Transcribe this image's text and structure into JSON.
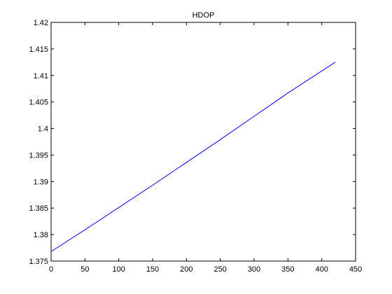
{
  "chart_data": {
    "type": "line",
    "title": "HDOP",
    "xlabel": "",
    "ylabel": "",
    "xlim": [
      0,
      450
    ],
    "ylim": [
      1.375,
      1.42
    ],
    "xticks": [
      0,
      50,
      100,
      150,
      200,
      250,
      300,
      350,
      400,
      450
    ],
    "xtick_labels": [
      "0",
      "50",
      "100",
      "150",
      "200",
      "250",
      "300",
      "350",
      "400",
      "450"
    ],
    "yticks": [
      1.375,
      1.38,
      1.385,
      1.39,
      1.395,
      1.4,
      1.405,
      1.41,
      1.415,
      1.42
    ],
    "ytick_labels": [
      "1.375",
      "1.38",
      "1.385",
      "1.39",
      "1.395",
      "1.4",
      "1.405",
      "1.41",
      "1.415",
      "1.42"
    ],
    "grid": false,
    "series": [
      {
        "color": "#0000ff",
        "x": [
          0,
          50,
          100,
          150,
          200,
          250,
          300,
          350,
          420
        ],
        "y": [
          1.3768,
          1.3809,
          1.3851,
          1.3893,
          1.3936,
          1.3979,
          1.4023,
          1.4067,
          1.4125
        ]
      }
    ]
  }
}
